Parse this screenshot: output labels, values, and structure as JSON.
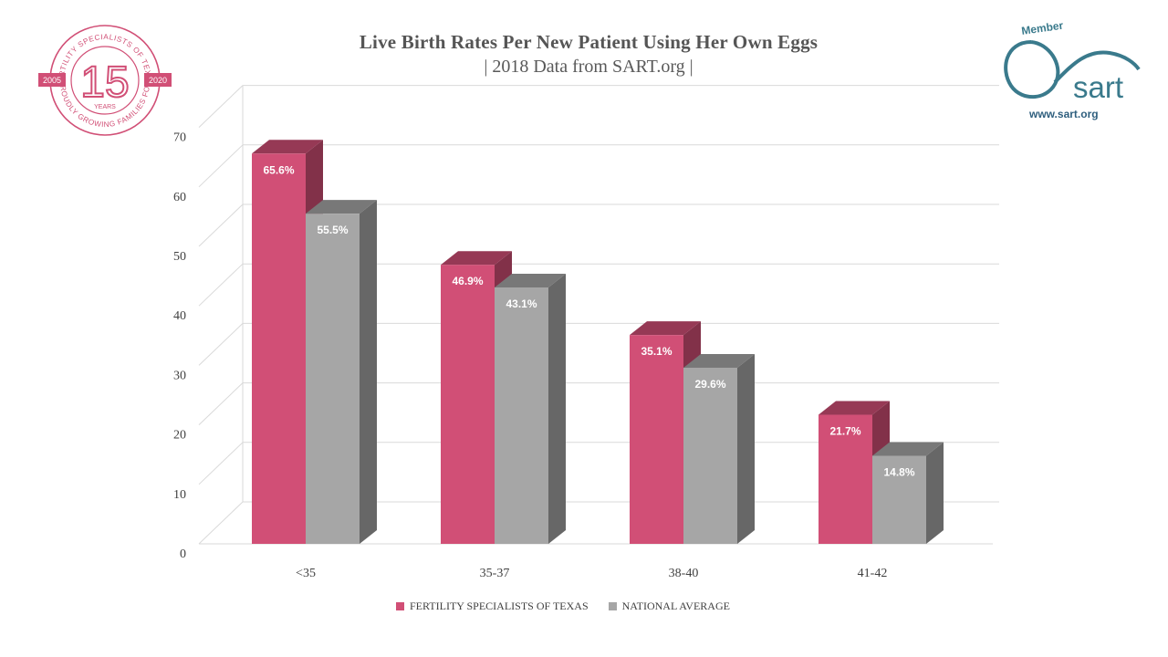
{
  "title": "Live Birth Rates Per New Patient Using Her Own Eggs",
  "subtitle": "| 2018 Data from SART.org |",
  "badge": {
    "ring_text": "FERTILITY SPECIALISTS OF TEXAS • PROUDLY GROWING FAMILIES FOR",
    "number": "15",
    "years": "YEARS",
    "year_start": "2005",
    "year_end": "2020",
    "color": "#d14f76"
  },
  "sart": {
    "member": "Member",
    "name": "sart",
    "url": "www.sart.org",
    "color": "#3a7a8c"
  },
  "chart_data": {
    "type": "bar",
    "categories": [
      "<35",
      "35-37",
      "38-40",
      "41-42"
    ],
    "series": [
      {
        "name": "FERTILITY SPECIALISTS OF TEXAS",
        "values": [
          65.6,
          46.9,
          35.1,
          21.7
        ],
        "labels": [
          "65.6%",
          "46.9%",
          "35.1%",
          "21.7%"
        ],
        "color": "#d14f76"
      },
      {
        "name": "NATIONAL AVERAGE",
        "values": [
          55.5,
          43.1,
          29.6,
          14.8
        ],
        "labels": [
          "55.5%",
          "43.1%",
          "29.6%",
          "14.8%"
        ],
        "color": "#a6a6a6"
      }
    ],
    "yticks": [
      "0",
      "10",
      "20",
      "30",
      "40",
      "50",
      "60",
      "70"
    ],
    "ylim": [
      0,
      70
    ],
    "grid": true,
    "legend": "bottom",
    "style": "3d-clustered-column"
  }
}
